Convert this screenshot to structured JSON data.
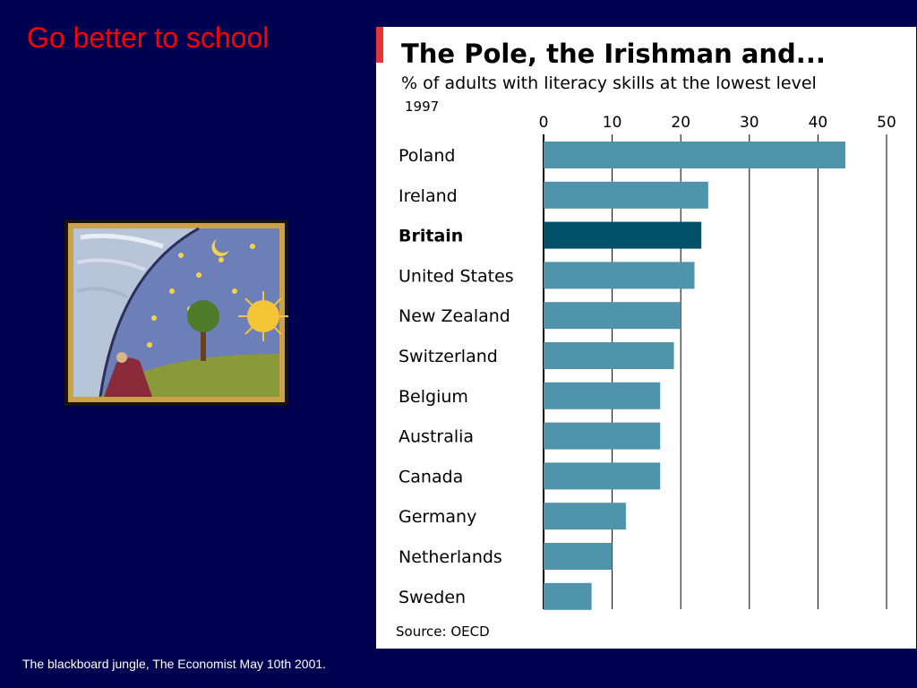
{
  "slide": {
    "title": "Go better to school",
    "footnote": "The blackboard jungle, The Economist May 10th 2001."
  },
  "colors": {
    "background": "#000050",
    "title": "#ff0000",
    "bar": "#4f94aa",
    "bar_highlight": "#00506a",
    "title_marker": "#e8323c"
  },
  "chart_data": {
    "type": "bar",
    "orientation": "horizontal",
    "title": "The Pole, the Irishman and...",
    "subtitle": "% of adults with literacy skills at the lowest level",
    "year": "1997",
    "source": "Source: OECD",
    "xlim": [
      0,
      50
    ],
    "ticks": [
      0,
      10,
      20,
      30,
      40,
      50
    ],
    "grid": true,
    "categories": [
      "Poland",
      "Ireland",
      "Britain",
      "United States",
      "New Zealand",
      "Switzerland",
      "Belgium",
      "Australia",
      "Canada",
      "Germany",
      "Netherlands",
      "Sweden"
    ],
    "values": [
      44,
      24,
      23,
      22,
      20,
      19,
      17,
      17,
      17,
      12,
      10,
      7
    ],
    "highlight": "Britain"
  }
}
